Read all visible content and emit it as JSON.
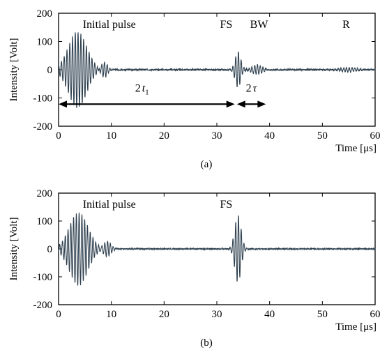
{
  "chart_data": [
    {
      "id": "a",
      "type": "line",
      "caption": "(a)",
      "xlabel": "Time [μs]",
      "ylabel": "Intensity [Volt]",
      "xlim": [
        0,
        60
      ],
      "ylim": [
        -200,
        200
      ],
      "xticks": [
        0,
        10,
        20,
        30,
        40,
        50,
        60
      ],
      "yticks": [
        200,
        100,
        0,
        -100,
        -200
      ],
      "grid": false,
      "line_color": "#2f4150",
      "bursts": [
        {
          "center": 3.6,
          "width": 2.5,
          "amplitude": 135,
          "freq": 1.9
        },
        {
          "center": 8.6,
          "width": 0.9,
          "amplitude": 30,
          "freq": 1.9
        },
        {
          "center": 34.0,
          "width": 0.75,
          "amplitude": 65,
          "freq": 1.9
        },
        {
          "center": 37.6,
          "width": 1.4,
          "amplitude": 17,
          "freq": 1.9
        },
        {
          "center": 55.0,
          "width": 2.2,
          "amplitude": 8,
          "freq": 1.9
        }
      ],
      "noise_amplitude": 2.5,
      "annotations": [
        {
          "label": "Initial pulse",
          "x": 4.6,
          "y": 148
        },
        {
          "label": "FS",
          "x": 30.6,
          "y": 148
        },
        {
          "label": "BW",
          "x": 36.3,
          "y": 148
        },
        {
          "label": "R",
          "x": 53.8,
          "y": 148
        }
      ],
      "arrows": [
        {
          "label_main": "2",
          "label_sub": "t",
          "label_index": "1",
          "x0": 0,
          "x1": 33.4,
          "y": -122,
          "label_x": 14.5,
          "label_y": -78
        },
        {
          "label_main": "2",
          "label_sub": "τ",
          "label_index": "",
          "x0": 33.8,
          "x1": 39.3,
          "y": -122,
          "label_x": 35.5,
          "label_y": -78
        }
      ]
    },
    {
      "id": "b",
      "type": "line",
      "caption": "(b)",
      "xlabel": "Time [μs]",
      "ylabel": "Intensity [Volt]",
      "xlim": [
        0,
        60
      ],
      "ylim": [
        -200,
        200
      ],
      "xticks": [
        0,
        10,
        20,
        30,
        40,
        50,
        60
      ],
      "yticks": [
        200,
        100,
        0,
        -100,
        -200
      ],
      "grid": false,
      "line_color": "#2f4150",
      "bursts": [
        {
          "center": 3.8,
          "width": 2.5,
          "amplitude": 132,
          "freq": 1.9
        },
        {
          "center": 9.2,
          "width": 1.0,
          "amplitude": 28,
          "freq": 1.9
        },
        {
          "center": 34.0,
          "width": 0.85,
          "amplitude": 122,
          "freq": 1.9
        }
      ],
      "noise_amplitude": 2.0,
      "annotations": [
        {
          "label": "Initial pulse",
          "x": 4.6,
          "y": 148
        },
        {
          "label": "FS",
          "x": 30.6,
          "y": 148
        }
      ],
      "arrows": []
    }
  ]
}
